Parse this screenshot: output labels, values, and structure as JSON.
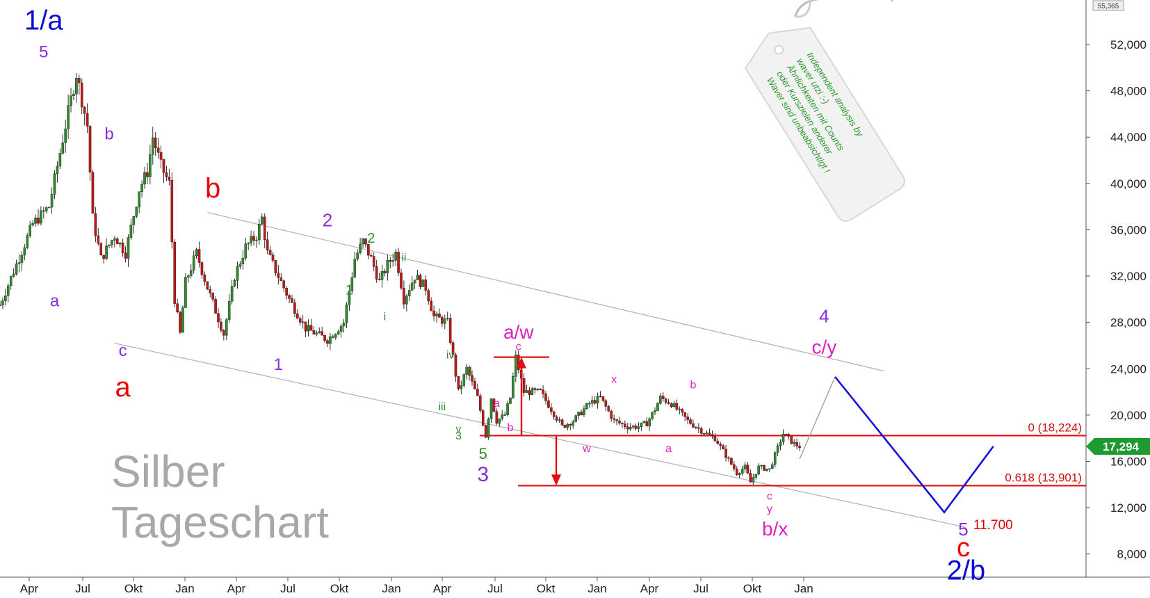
{
  "chart_data": {
    "type": "candlestick",
    "title": "Silber",
    "subtitle": "Tageschart",
    "ylim": [
      6000,
      55365
    ],
    "y_ticks": [
      8000,
      12000,
      16000,
      20000,
      24000,
      28000,
      32000,
      36000,
      40000,
      44000,
      48000,
      52000
    ],
    "y_tick_labels": [
      "8,000",
      "12,000",
      "16,000",
      "20,000",
      "24,000",
      "28,000",
      "32,000",
      "36,000",
      "40,000",
      "44,000",
      "48,000",
      "52,000"
    ],
    "y_top_label": "55,365",
    "x_tick_labels": [
      "Apr",
      "Jul",
      "Okt",
      "Jan",
      "Apr",
      "Jul",
      "Okt",
      "Jan",
      "Apr",
      "Jul",
      "Okt",
      "Jan",
      "Apr",
      "Jul",
      "Okt",
      "Jan"
    ],
    "price_path": [
      [
        0,
        29500
      ],
      [
        3,
        33000
      ],
      [
        6,
        36500
      ],
      [
        9,
        38000
      ],
      [
        12,
        45000
      ],
      [
        14,
        49500
      ],
      [
        16,
        45000
      ],
      [
        17,
        37000
      ],
      [
        18.5,
        33500
      ],
      [
        21,
        35500
      ],
      [
        23,
        34000
      ],
      [
        25.5,
        39500
      ],
      [
        27,
        41000
      ],
      [
        28,
        44000
      ],
      [
        29.5,
        41500
      ],
      [
        31,
        40000
      ],
      [
        32,
        30000
      ],
      [
        33,
        27000
      ],
      [
        34,
        31500
      ],
      [
        36,
        34000
      ],
      [
        38,
        31000
      ],
      [
        39.5,
        29000
      ],
      [
        41,
        27000
      ],
      [
        43,
        32000
      ],
      [
        45,
        34500
      ],
      [
        47,
        35500
      ],
      [
        48,
        37000
      ],
      [
        49,
        34000
      ],
      [
        51,
        32000
      ],
      [
        53,
        30000
      ],
      [
        56,
        27500
      ],
      [
        60,
        26500
      ],
      [
        63,
        28000
      ],
      [
        65,
        33500
      ],
      [
        66.5,
        35000
      ],
      [
        68,
        33500
      ],
      [
        69.5,
        31500
      ],
      [
        71,
        33000
      ],
      [
        72.5,
        34000
      ],
      [
        74,
        30000
      ],
      [
        76,
        32000
      ],
      [
        78,
        31000
      ],
      [
        79.5,
        28500
      ],
      [
        82,
        28000
      ],
      [
        84,
        22000
      ],
      [
        85.5,
        24000
      ],
      [
        87.5,
        21500
      ],
      [
        89,
        18200
      ],
      [
        90,
        21500
      ],
      [
        91,
        19500
      ],
      [
        92.5,
        20000
      ],
      [
        93.5,
        21500
      ],
      [
        94.5,
        25000
      ],
      [
        96,
        22000
      ],
      [
        99,
        22000
      ],
      [
        101,
        20500
      ],
      [
        103,
        19000
      ],
      [
        105,
        19500
      ],
      [
        108,
        21000
      ],
      [
        110,
        21500
      ],
      [
        112.5,
        19500
      ],
      [
        115,
        19000
      ],
      [
        117,
        19000
      ],
      [
        118.5,
        19300
      ],
      [
        120,
        20500
      ],
      [
        121,
        21500
      ],
      [
        123,
        21000
      ],
      [
        126,
        19500
      ],
      [
        129,
        18500
      ],
      [
        131,
        18000
      ],
      [
        133,
        16500
      ],
      [
        135,
        15000
      ],
      [
        136.5,
        15500
      ],
      [
        137.5,
        14200
      ],
      [
        139,
        15500
      ],
      [
        141,
        15300
      ],
      [
        143.5,
        18400
      ],
      [
        145.5,
        17500
      ],
      [
        146.5,
        17294
      ]
    ],
    "last_price": 17294,
    "last_price_label": "17,294",
    "fib_levels": [
      {
        "label": "0 (18,224)",
        "value": 18224
      },
      {
        "label": "0.618 (13,901)",
        "value": 13901
      }
    ],
    "projection_path": [
      [
        146.5,
        16200
      ],
      [
        153,
        23300
      ],
      [
        173,
        11600
      ],
      [
        182,
        17294
      ]
    ],
    "channel_lines": [
      {
        "from": [
          38,
          37500
        ],
        "to": [
          162,
          23800
        ]
      },
      {
        "from": [
          21,
          26200
        ],
        "to": [
          177,
          10300
        ]
      }
    ],
    "target_label": "11.700",
    "wave_labels": [
      {
        "text": "1/a",
        "color": "#0b0bd6",
        "x": 8,
        "y": 53300,
        "size": 40
      },
      {
        "text": "5",
        "color": "#8a2be2",
        "x": 8,
        "y": 50900,
        "size": 24
      },
      {
        "text": "b",
        "color": "#8a2be2",
        "x": 20,
        "y": 43800,
        "size": 24
      },
      {
        "text": "a",
        "color": "#8a2be2",
        "x": 10,
        "y": 29400,
        "size": 24
      },
      {
        "text": "c",
        "color": "#8a2be2",
        "x": 22.5,
        "y": 25100,
        "size": 24
      },
      {
        "text": "a",
        "color": "#ee0000",
        "x": 22.5,
        "y": 21600,
        "size": 40
      },
      {
        "text": "b",
        "color": "#ee0000",
        "x": 39,
        "y": 38800,
        "size": 40
      },
      {
        "text": "1",
        "color": "#8a2be2",
        "x": 51,
        "y": 23900,
        "size": 24
      },
      {
        "text": "2",
        "color": "#8a2be2",
        "x": 60,
        "y": 36300,
        "size": 26
      },
      {
        "text": "1",
        "color": "#2e8b2e",
        "x": 64,
        "y": 30400,
        "size": 20
      },
      {
        "text": "2",
        "color": "#2e8b2e",
        "x": 68,
        "y": 34900,
        "size": 20
      },
      {
        "text": "ii",
        "color": "#2e8b2e",
        "x": 74,
        "y": 33300,
        "size": 16
      },
      {
        "text": "i",
        "color": "#2e8b2e",
        "x": 70.5,
        "y": 28200,
        "size": 16
      },
      {
        "text": "iv",
        "color": "#2e8b2e",
        "x": 82.5,
        "y": 24900,
        "size": 16
      },
      {
        "text": "4",
        "color": "#2e8b2e",
        "x": 86,
        "y": 23400,
        "size": 18
      },
      {
        "text": "iii",
        "color": "#2e8b2e",
        "x": 81,
        "y": 20400,
        "size": 16
      },
      {
        "text": "v",
        "color": "#2e8b2e",
        "x": 84,
        "y": 18500,
        "size": 15
      },
      {
        "text": "3",
        "color": "#2e8b2e",
        "x": 84,
        "y": 17900,
        "size": 16
      },
      {
        "text": "5",
        "color": "#2e8b2e",
        "x": 88.5,
        "y": 16200,
        "size": 22
      },
      {
        "text": "3",
        "color": "#8a2be2",
        "x": 88.5,
        "y": 14300,
        "size": 30
      },
      {
        "text": "a",
        "color": "#e020c0",
        "x": 91,
        "y": 20700,
        "size": 16
      },
      {
        "text": "b",
        "color": "#e020c0",
        "x": 93.5,
        "y": 18600,
        "size": 16
      },
      {
        "text": "c",
        "color": "#e020c0",
        "x": 95,
        "y": 25600,
        "size": 16
      },
      {
        "text": "a/w",
        "color": "#e020c0",
        "x": 95,
        "y": 26600,
        "size": 28
      },
      {
        "text": "w",
        "color": "#e020c0",
        "x": 107.5,
        "y": 16800,
        "size": 16
      },
      {
        "text": "x",
        "color": "#e020c0",
        "x": 112.5,
        "y": 22800,
        "size": 16
      },
      {
        "text": "a",
        "color": "#e020c0",
        "x": 122.5,
        "y": 16800,
        "size": 16
      },
      {
        "text": "b",
        "color": "#e020c0",
        "x": 127,
        "y": 22300,
        "size": 16
      },
      {
        "text": "c",
        "color": "#e020c0",
        "x": 141,
        "y": 12700,
        "size": 16
      },
      {
        "text": "y",
        "color": "#e020c0",
        "x": 141,
        "y": 11600,
        "size": 16
      },
      {
        "text": "b/x",
        "color": "#e020c0",
        "x": 142,
        "y": 9600,
        "size": 28
      },
      {
        "text": "4",
        "color": "#8a2be2",
        "x": 151,
        "y": 28000,
        "size": 26
      },
      {
        "text": "c/y",
        "color": "#e020c0",
        "x": 151,
        "y": 25300,
        "size": 28
      },
      {
        "text": "5",
        "color": "#8a2be2",
        "x": 176.5,
        "y": 9600,
        "size": 26
      },
      {
        "text": "c",
        "color": "#ee0000",
        "x": 176.5,
        "y": 7800,
        "size": 38
      },
      {
        "text": "2/b",
        "color": "#0b0bd6",
        "x": 177,
        "y": 5800,
        "size": 40
      }
    ],
    "tag_text": [
      "Independent analysis by",
      "waver utzi :-)",
      "Ähnlichkeiten mit Counts",
      "oder Kurszielen anderer",
      "Waver sind unbeabsichtigt !"
    ]
  }
}
